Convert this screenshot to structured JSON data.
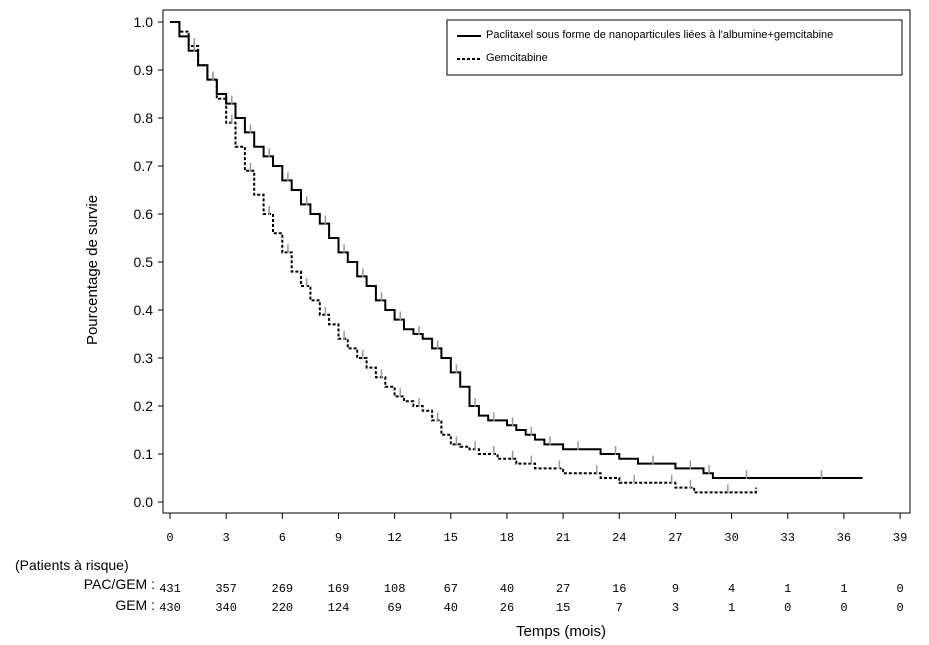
{
  "chart_data": {
    "type": "line",
    "ylabel": "Pourcentage de survie",
    "xlabel": "Temps (mois)",
    "xlim": [
      0,
      39
    ],
    "ylim": [
      0,
      1
    ],
    "x_ticks": [
      0,
      3,
      6,
      9,
      12,
      15,
      18,
      21,
      24,
      27,
      30,
      33,
      36,
      39
    ],
    "y_ticks": [
      "0.0",
      "0.1",
      "0.2",
      "0.3",
      "0.4",
      "0.5",
      "0.6",
      "0.7",
      "0.8",
      "0.9",
      "1.0"
    ],
    "legend_position": "top-right",
    "series": [
      {
        "name": "Paclitaxel sous forme de nanoparticules liées à l'albumine+gemcitabine",
        "style": "solid",
        "color": "#000000",
        "x": [
          0,
          0.5,
          1,
          1.5,
          2,
          2.5,
          3,
          3.5,
          4,
          4.5,
          5,
          5.5,
          6,
          6.5,
          7,
          7.5,
          8,
          8.5,
          9,
          9.5,
          10,
          10.5,
          11,
          11.5,
          12,
          12.5,
          13,
          13.5,
          14,
          14.5,
          15,
          15.5,
          16,
          16.5,
          17,
          17.5,
          18,
          18.5,
          19,
          19.5,
          20,
          20.5,
          21,
          22,
          23,
          24,
          25,
          26,
          27,
          28,
          28.5,
          29,
          30,
          31,
          33,
          35,
          37
        ],
        "y": [
          1.0,
          0.97,
          0.94,
          0.91,
          0.88,
          0.85,
          0.83,
          0.8,
          0.77,
          0.74,
          0.72,
          0.7,
          0.67,
          0.65,
          0.62,
          0.6,
          0.58,
          0.55,
          0.52,
          0.5,
          0.47,
          0.45,
          0.42,
          0.4,
          0.38,
          0.36,
          0.35,
          0.34,
          0.32,
          0.3,
          0.27,
          0.24,
          0.2,
          0.18,
          0.17,
          0.17,
          0.16,
          0.15,
          0.14,
          0.13,
          0.12,
          0.12,
          0.11,
          0.11,
          0.1,
          0.09,
          0.08,
          0.08,
          0.07,
          0.07,
          0.06,
          0.05,
          0.05,
          0.05,
          0.05,
          0.05,
          0.05
        ]
      },
      {
        "name": "Gemcitabine",
        "style": "dashed",
        "color": "#000000",
        "x": [
          0,
          0.5,
          1,
          1.5,
          2,
          2.5,
          3,
          3.5,
          4,
          4.5,
          5,
          5.5,
          6,
          6.5,
          7,
          7.5,
          8,
          8.5,
          9,
          9.5,
          10,
          10.5,
          11,
          11.5,
          12,
          12.5,
          13,
          13.5,
          14,
          14.5,
          15,
          15.5,
          16,
          16.5,
          17,
          17.5,
          18,
          18.5,
          19,
          19.5,
          20,
          21,
          22,
          23,
          24,
          25,
          26,
          27,
          27.5,
          28,
          29,
          30,
          31.3
        ],
        "y": [
          1.0,
          0.98,
          0.95,
          0.91,
          0.88,
          0.84,
          0.79,
          0.74,
          0.69,
          0.64,
          0.6,
          0.56,
          0.52,
          0.48,
          0.45,
          0.42,
          0.39,
          0.37,
          0.34,
          0.32,
          0.3,
          0.28,
          0.26,
          0.24,
          0.22,
          0.21,
          0.2,
          0.19,
          0.17,
          0.14,
          0.12,
          0.115,
          0.11,
          0.1,
          0.1,
          0.09,
          0.09,
          0.08,
          0.08,
          0.07,
          0.07,
          0.06,
          0.06,
          0.05,
          0.04,
          0.04,
          0.04,
          0.03,
          0.03,
          0.02,
          0.02,
          0.02,
          0.03
        ]
      }
    ],
    "risk_table": {
      "header": "(Patients à risque)",
      "times": [
        0,
        3,
        6,
        9,
        12,
        15,
        18,
        21,
        24,
        27,
        30,
        33,
        36,
        39
      ],
      "rows": [
        {
          "label": "PAC/GEM :",
          "values": [
            "431",
            "357",
            "269",
            "169",
            "108",
            "67",
            "40",
            "27",
            "16",
            "9",
            "4",
            "1",
            "1",
            "0"
          ]
        },
        {
          "label": "GEM :",
          "values": [
            "430",
            "340",
            "220",
            "124",
            "69",
            "40",
            "26",
            "15",
            "7",
            "3",
            "1",
            "0",
            "0",
            "0"
          ]
        }
      ]
    }
  }
}
